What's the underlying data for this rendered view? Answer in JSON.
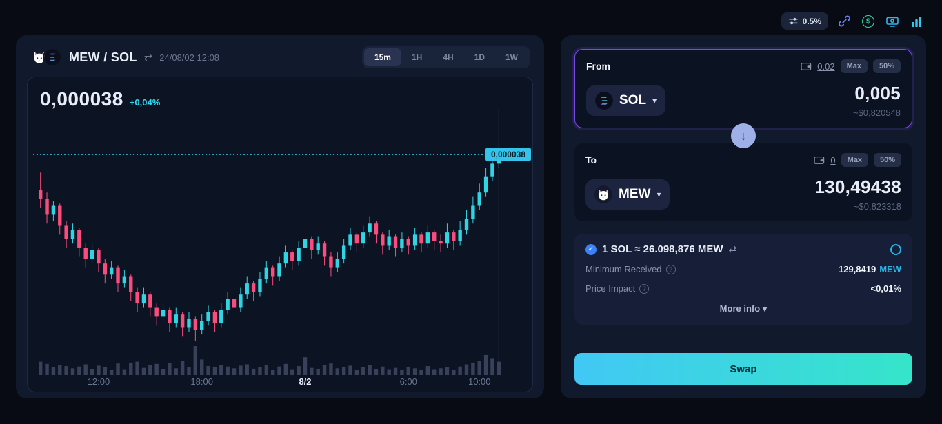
{
  "colors": {
    "accent": "#2fd9f0",
    "candle_up": "#30d5e5",
    "candle_down": "#fb4d7d",
    "volume": "#39415a",
    "from_border": "#7a4be0",
    "swap_gradient": [
      "#41c8f5",
      "#35e5c9"
    ]
  },
  "icons": {
    "chevron": "▾",
    "swap_arrows": "⇄",
    "arrow_down": "↓",
    "check": "✓",
    "question": "?",
    "dollar": "$"
  },
  "toolbar": {
    "slippage": "0.5%"
  },
  "chart_panel": {
    "pair": "MEW / SOL",
    "timestamp": "24/08/02 12:08",
    "timeframes": [
      "15m",
      "1H",
      "4H",
      "1D",
      "1W"
    ],
    "active_timeframe": "15m",
    "price": "0,000038",
    "change": "+0,04%",
    "price_label": "0,000038"
  },
  "chart_data": {
    "type": "candlestick",
    "title": "MEW / SOL",
    "timeframe": "15m",
    "price_scale": "values are price x 1e-6 SOL",
    "current_price_display": "0,000038",
    "current_price_micro": 38.0,
    "change_pct": "+0,04%",
    "x_ticks": [
      {
        "index": 9,
        "label": "12:00",
        "major": false
      },
      {
        "index": 25,
        "label": "18:00",
        "major": false
      },
      {
        "index": 41,
        "label": "8/2",
        "major": true
      },
      {
        "index": 57,
        "label": "6:00",
        "major": false
      },
      {
        "index": 68,
        "label": "10:00",
        "major": false
      }
    ],
    "candles": [
      [
        36.4,
        37.2,
        35.6,
        36.0,
        30
      ],
      [
        36.0,
        36.3,
        34.9,
        35.3,
        25
      ],
      [
        35.3,
        35.9,
        35.0,
        35.7,
        18
      ],
      [
        35.7,
        35.8,
        34.4,
        34.8,
        22
      ],
      [
        34.8,
        35.0,
        33.8,
        34.2,
        20
      ],
      [
        34.2,
        34.9,
        34.0,
        34.6,
        15
      ],
      [
        34.6,
        34.7,
        33.4,
        33.8,
        19
      ],
      [
        33.8,
        34.0,
        32.9,
        33.3,
        24
      ],
      [
        33.3,
        34.0,
        33.1,
        33.7,
        14
      ],
      [
        33.7,
        33.8,
        32.7,
        33.1,
        21
      ],
      [
        33.1,
        33.3,
        32.2,
        32.6,
        18
      ],
      [
        32.6,
        33.2,
        32.4,
        32.9,
        12
      ],
      [
        32.9,
        33.0,
        31.8,
        32.2,
        26
      ],
      [
        32.2,
        32.8,
        32.0,
        32.5,
        13
      ],
      [
        32.5,
        32.6,
        31.4,
        31.8,
        28
      ],
      [
        31.8,
        32.0,
        30.9,
        31.3,
        30
      ],
      [
        31.3,
        32.0,
        31.1,
        31.7,
        16
      ],
      [
        31.7,
        31.8,
        30.7,
        31.1,
        22
      ],
      [
        31.1,
        31.3,
        30.3,
        30.7,
        25
      ],
      [
        30.7,
        31.3,
        30.5,
        31.0,
        14
      ],
      [
        31.0,
        31.1,
        30.0,
        30.4,
        27
      ],
      [
        30.4,
        31.1,
        30.2,
        30.8,
        15
      ],
      [
        30.8,
        30.9,
        29.8,
        30.2,
        32
      ],
      [
        30.2,
        30.9,
        30.0,
        30.6,
        17
      ],
      [
        30.6,
        30.7,
        29.6,
        30.1,
        65
      ],
      [
        30.1,
        30.8,
        29.9,
        30.5,
        35
      ],
      [
        30.5,
        31.2,
        30.3,
        30.9,
        20
      ],
      [
        30.9,
        31.0,
        30.0,
        30.4,
        18
      ],
      [
        30.4,
        31.3,
        30.2,
        31.0,
        22
      ],
      [
        31.0,
        31.8,
        30.8,
        31.5,
        19
      ],
      [
        31.5,
        31.6,
        30.7,
        31.1,
        15
      ],
      [
        31.1,
        32.0,
        30.9,
        31.7,
        21
      ],
      [
        31.7,
        32.5,
        31.5,
        32.2,
        24
      ],
      [
        32.2,
        32.3,
        31.4,
        31.8,
        14
      ],
      [
        31.8,
        32.7,
        31.6,
        32.4,
        18
      ],
      [
        32.4,
        33.2,
        32.2,
        32.9,
        23
      ],
      [
        32.9,
        33.0,
        32.1,
        32.5,
        12
      ],
      [
        32.5,
        33.4,
        32.3,
        33.1,
        19
      ],
      [
        33.1,
        33.9,
        32.9,
        33.6,
        25
      ],
      [
        33.6,
        33.7,
        32.8,
        33.2,
        13
      ],
      [
        33.2,
        34.1,
        33.0,
        33.8,
        20
      ],
      [
        33.8,
        34.5,
        33.6,
        34.2,
        40
      ],
      [
        34.2,
        34.3,
        33.3,
        33.7,
        16
      ],
      [
        33.7,
        34.3,
        33.5,
        34.0,
        14
      ],
      [
        34.0,
        34.1,
        33.0,
        33.4,
        22
      ],
      [
        33.4,
        33.6,
        32.5,
        32.9,
        26
      ],
      [
        32.9,
        33.6,
        32.7,
        33.3,
        15
      ],
      [
        33.3,
        34.2,
        33.1,
        33.9,
        18
      ],
      [
        33.9,
        34.7,
        33.7,
        34.4,
        21
      ],
      [
        34.4,
        34.5,
        33.6,
        34.0,
        12
      ],
      [
        34.0,
        34.8,
        33.8,
        34.5,
        17
      ],
      [
        34.5,
        35.2,
        34.3,
        34.9,
        23
      ],
      [
        34.9,
        35.0,
        34.0,
        34.4,
        14
      ],
      [
        34.4,
        34.5,
        33.5,
        33.9,
        19
      ],
      [
        33.9,
        34.6,
        33.7,
        34.3,
        13
      ],
      [
        34.3,
        34.4,
        33.4,
        33.8,
        16
      ],
      [
        33.8,
        34.5,
        33.6,
        34.2,
        11
      ],
      [
        34.2,
        34.3,
        33.5,
        33.9,
        18
      ],
      [
        33.9,
        34.7,
        33.7,
        34.4,
        15
      ],
      [
        34.4,
        34.5,
        33.6,
        34.0,
        12
      ],
      [
        34.0,
        34.8,
        33.8,
        34.5,
        20
      ],
      [
        34.5,
        34.6,
        33.7,
        34.1,
        13
      ],
      [
        34.1,
        34.4,
        33.6,
        34.0,
        15
      ],
      [
        34.0,
        34.9,
        33.8,
        34.5,
        17
      ],
      [
        34.5,
        34.6,
        33.7,
        34.1,
        12
      ],
      [
        34.1,
        35.0,
        33.9,
        34.6,
        19
      ],
      [
        34.6,
        35.5,
        34.4,
        35.1,
        24
      ],
      [
        35.1,
        36.1,
        34.9,
        35.7,
        28
      ],
      [
        35.7,
        36.7,
        35.5,
        36.3,
        32
      ],
      [
        36.3,
        37.4,
        36.1,
        37.0,
        45
      ],
      [
        37.0,
        38.0,
        36.8,
        37.6,
        38
      ],
      [
        37.6,
        38.3,
        37.4,
        38.0,
        30
      ]
    ]
  },
  "swap": {
    "from": {
      "label": "From",
      "balance": "0.02",
      "max": "Max",
      "half": "50%",
      "token": "SOL",
      "amount": "0,005",
      "usd": "~$0,820548"
    },
    "to": {
      "label": "To",
      "balance": "0",
      "max": "Max",
      "half": "50%",
      "token": "MEW",
      "amount": "130,49438",
      "usd": "~$0,823318"
    },
    "rate": "1 SOL ≈ 26.098,876 MEW",
    "min_received_label": "Minimum Received",
    "min_received_value": "129,8419",
    "min_received_token": "MEW",
    "price_impact_label": "Price Impact",
    "price_impact_value": "<0,01%",
    "more_info": "More info",
    "swap_button": "Swap"
  }
}
